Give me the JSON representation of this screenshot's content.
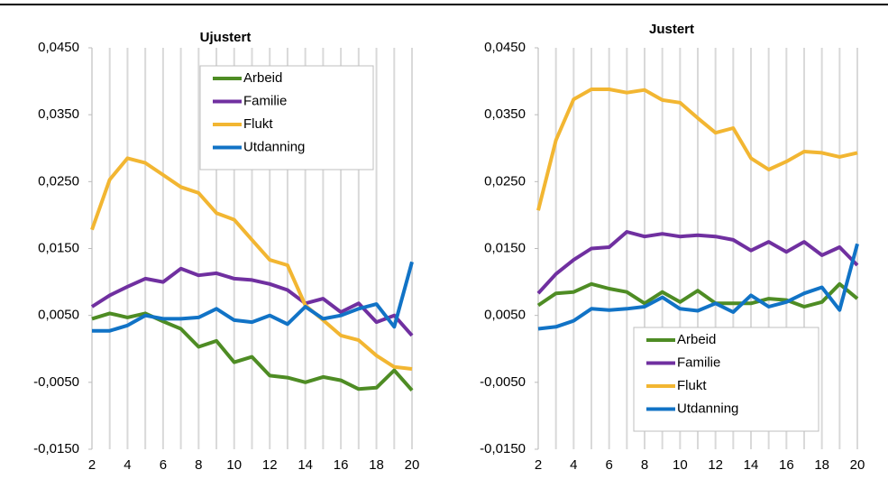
{
  "chart_data": [
    {
      "type": "line",
      "title": "Ujustert",
      "x": [
        2,
        3,
        4,
        5,
        6,
        7,
        8,
        9,
        10,
        11,
        12,
        13,
        14,
        15,
        16,
        17,
        18,
        19,
        20
      ],
      "xlim": [
        2,
        20
      ],
      "xticks": [
        2,
        4,
        6,
        8,
        10,
        12,
        14,
        16,
        18,
        20
      ],
      "ylim": [
        -0.015,
        0.045
      ],
      "yticks": [
        {
          "value": -0.015,
          "label": "-0,0150"
        },
        {
          "value": -0.005,
          "label": "-0,0050"
        },
        {
          "value": 0.005,
          "label": "0,0050"
        },
        {
          "value": 0.015,
          "label": "0,0150"
        },
        {
          "value": 0.025,
          "label": "0,0250"
        },
        {
          "value": 0.035,
          "label": "0,0350"
        },
        {
          "value": 0.045,
          "label": "0,0450"
        }
      ],
      "grid": "x",
      "legend": "upper right",
      "series": [
        {
          "name": "Arbeid",
          "color": "#4e8c24",
          "values": [
            0.0045,
            0.0053,
            0.0047,
            0.0053,
            0.0041,
            0.003,
            0.0003,
            0.0012,
            -0.002,
            -0.0012,
            -0.004,
            -0.0043,
            -0.005,
            -0.0042,
            -0.0047,
            -0.006,
            -0.0058,
            -0.0032,
            -0.0062
          ]
        },
        {
          "name": "Familie",
          "color": "#7030a0",
          "values": [
            0.0063,
            0.008,
            0.0093,
            0.0105,
            0.01,
            0.012,
            0.011,
            0.0113,
            0.0105,
            0.0103,
            0.0097,
            0.0088,
            0.0068,
            0.0075,
            0.0055,
            0.0068,
            0.004,
            0.005,
            0.002
          ]
        },
        {
          "name": "Flukt",
          "color": "#f2b632",
          "values": [
            0.0178,
            0.0253,
            0.0285,
            0.0278,
            0.026,
            0.0242,
            0.0233,
            0.0203,
            0.0193,
            0.0163,
            0.0133,
            0.0125,
            0.0065,
            0.0043,
            0.002,
            0.0013,
            -0.001,
            -0.0027,
            -0.003
          ]
        },
        {
          "name": "Utdanning",
          "color": "#1173c6",
          "values": [
            0.0027,
            0.0027,
            0.0035,
            0.005,
            0.0045,
            0.0045,
            0.0047,
            0.006,
            0.0043,
            0.004,
            0.005,
            0.0037,
            0.0063,
            0.0045,
            0.005,
            0.006,
            0.0067,
            0.0033,
            0.013
          ]
        }
      ]
    },
    {
      "type": "line",
      "title": "Justert",
      "x": [
        2,
        3,
        4,
        5,
        6,
        7,
        8,
        9,
        10,
        11,
        12,
        13,
        14,
        15,
        16,
        17,
        18,
        19,
        20
      ],
      "xlim": [
        2,
        20
      ],
      "xticks": [
        2,
        4,
        6,
        8,
        10,
        12,
        14,
        16,
        18,
        20
      ],
      "ylim": [
        -0.015,
        0.045
      ],
      "yticks": [
        {
          "value": -0.015,
          "label": "-0,0150"
        },
        {
          "value": -0.005,
          "label": "-0,0050"
        },
        {
          "value": 0.005,
          "label": "0,0050"
        },
        {
          "value": 0.015,
          "label": "0,0150"
        },
        {
          "value": 0.025,
          "label": "0,0250"
        },
        {
          "value": 0.035,
          "label": "0,0350"
        },
        {
          "value": 0.045,
          "label": "0,0450"
        }
      ],
      "grid": "x",
      "legend": "lower right",
      "series": [
        {
          "name": "Arbeid",
          "color": "#4e8c24",
          "values": [
            0.0065,
            0.0083,
            0.0085,
            0.0097,
            0.009,
            0.0085,
            0.0068,
            0.0085,
            0.007,
            0.0087,
            0.0068,
            0.0068,
            0.0068,
            0.0075,
            0.0073,
            0.0063,
            0.007,
            0.0097,
            0.0075
          ]
        },
        {
          "name": "Familie",
          "color": "#7030a0",
          "values": [
            0.0083,
            0.0112,
            0.0133,
            0.015,
            0.0152,
            0.0175,
            0.0168,
            0.0172,
            0.0168,
            0.017,
            0.0168,
            0.0163,
            0.0147,
            0.016,
            0.0145,
            0.016,
            0.014,
            0.0152,
            0.0125
          ]
        },
        {
          "name": "Flukt",
          "color": "#f2b632",
          "values": [
            0.0207,
            0.0312,
            0.0373,
            0.0388,
            0.0388,
            0.0383,
            0.0387,
            0.0372,
            0.0368,
            0.0345,
            0.0323,
            0.033,
            0.0285,
            0.0268,
            0.028,
            0.0295,
            0.0293,
            0.0287,
            0.0293
          ]
        },
        {
          "name": "Utdanning",
          "color": "#1173c6",
          "values": [
            0.003,
            0.0033,
            0.0042,
            0.006,
            0.0058,
            0.006,
            0.0063,
            0.0077,
            0.006,
            0.0057,
            0.0068,
            0.0055,
            0.008,
            0.0063,
            0.007,
            0.0083,
            0.0092,
            0.0058,
            0.0157
          ]
        }
      ]
    }
  ]
}
